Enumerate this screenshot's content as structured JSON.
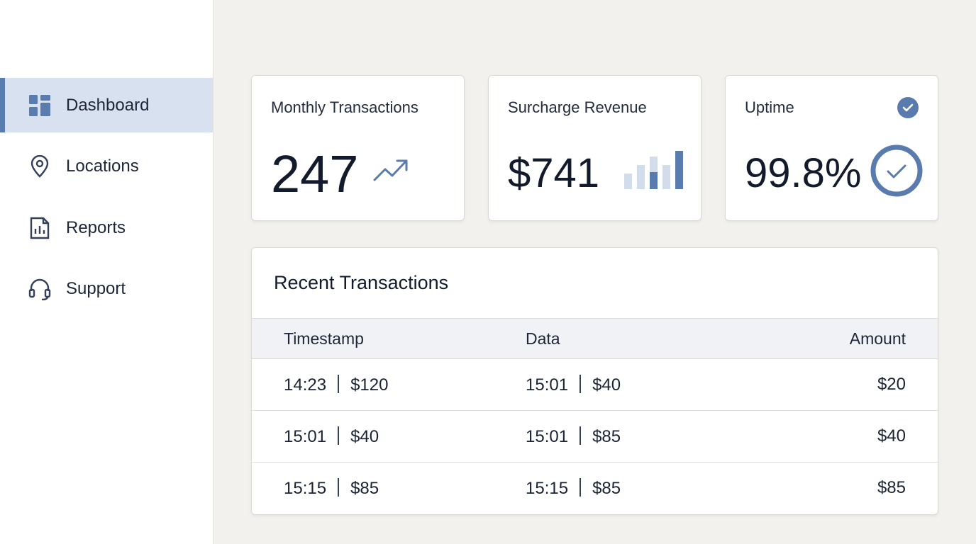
{
  "sidebar": {
    "items": [
      {
        "label": "Dashboard",
        "icon": "dashboard-icon",
        "active": true
      },
      {
        "label": "Locations",
        "icon": "location-pin-icon",
        "active": false
      },
      {
        "label": "Reports",
        "icon": "report-chart-icon",
        "active": false
      },
      {
        "label": "Support",
        "icon": "headset-icon",
        "active": false
      }
    ]
  },
  "stats": {
    "monthly": {
      "title": "Monthly Transactions",
      "value": "247",
      "icon": "trend-up-icon"
    },
    "surcharge": {
      "title": "Surcharge Revenue",
      "value": "$741",
      "icon": "bar-chart-icon"
    },
    "uptime": {
      "title": "Uptime",
      "value": "99.8%",
      "icon": "check-circle-icon",
      "percent": 99.8
    }
  },
  "transactions": {
    "title": "Recent Transactions",
    "headers": {
      "timestamp": "Timestamp",
      "data": "Data",
      "amount": "Amount"
    },
    "rows": [
      {
        "t1": "14:23",
        "v1": "$120",
        "t2": "15:01",
        "v2": "$40",
        "amount": "$20"
      },
      {
        "t1": "15:01",
        "v1": "$40",
        "t2": "15:01",
        "v2": "$85",
        "amount": "$40"
      },
      {
        "t1": "15:15",
        "v1": "$85",
        "t2": "15:15",
        "v2": "$85",
        "amount": "$85"
      }
    ]
  },
  "colors": {
    "accent": "#5a7bad",
    "active_bg": "#d8e1ef",
    "page_bg": "#f3f1ee"
  }
}
